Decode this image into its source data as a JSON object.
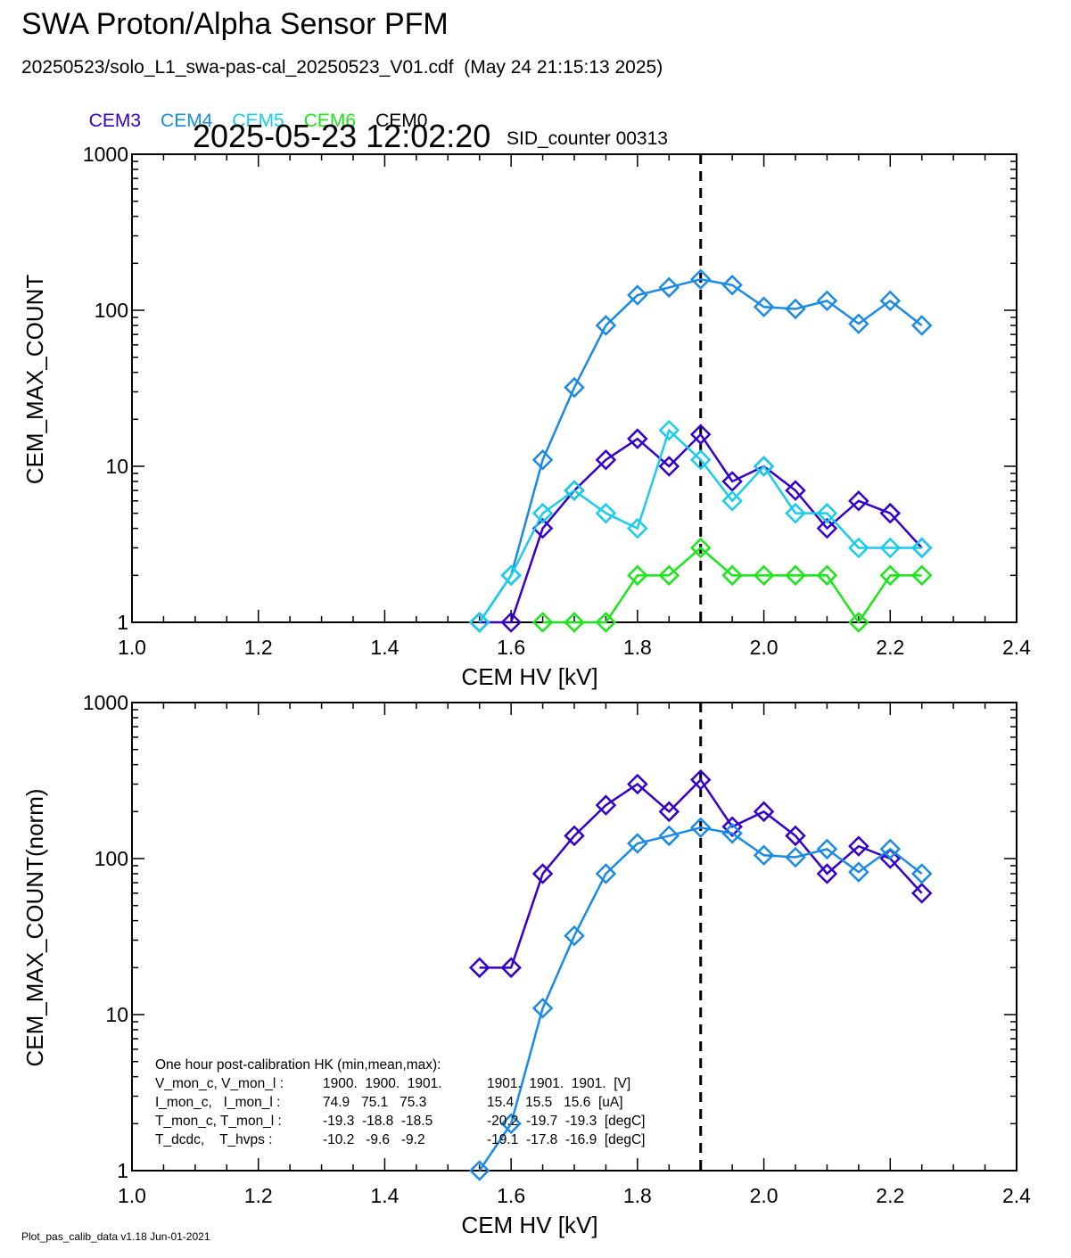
{
  "header": {
    "title": "SWA Proton/Alpha Sensor PFM",
    "subtitle": "20250523/solo_L1_swa-pas-cal_20250523_V01.cdf  (May 24 21:15:13 2025)",
    "timestamp": "2025-05-23 12:02:20",
    "sid_counter": "SID_counter 00313"
  },
  "legend": [
    {
      "label": "CEM3",
      "color": "#3300cc"
    },
    {
      "label": "CEM4",
      "color": "#1a8ae6"
    },
    {
      "label": "CEM5",
      "color": "#1acceb"
    },
    {
      "label": "CEM6",
      "color": "#1ae61a"
    },
    {
      "label": "CEM0",
      "color": "#000000"
    }
  ],
  "footer": "Plot_pas_calib_data v1.18 Jun-01-2021",
  "chart_data": [
    {
      "type": "line",
      "xlabel": "CEM HV [kV]",
      "ylabel": "CEM_MAX_COUNT",
      "xlim": [
        1.0,
        2.4
      ],
      "ylim": [
        1,
        1000
      ],
      "yscale": "log",
      "x_ticks": [
        "1.0",
        "1.2",
        "1.4",
        "1.6",
        "1.8",
        "2.0",
        "2.2",
        "2.4"
      ],
      "y_ticks": [
        "1",
        "10",
        "100",
        "1000"
      ],
      "vline": 1.9,
      "marker": "diamond",
      "series": [
        {
          "name": "CEM3",
          "color": "#3300cc",
          "x": [
            1.55,
            1.6,
            1.65,
            1.7,
            1.75,
            1.8,
            1.85,
            1.9,
            1.95,
            2.0,
            2.05,
            2.1,
            2.15,
            2.2,
            2.25
          ],
          "y": [
            1,
            1,
            4,
            7,
            11,
            15,
            10,
            16,
            8,
            10,
            7,
            4,
            6,
            5,
            3
          ]
        },
        {
          "name": "CEM4",
          "color": "#1a8ae6",
          "x": [
            1.55,
            1.6,
            1.65,
            1.7,
            1.75,
            1.8,
            1.85,
            1.9,
            1.95,
            2.0,
            2.05,
            2.1,
            2.15,
            2.2,
            2.25
          ],
          "y": [
            1,
            2,
            11,
            32,
            80,
            125,
            140,
            158,
            145,
            105,
            102,
            115,
            82,
            115,
            80
          ]
        },
        {
          "name": "CEM5",
          "color": "#1acceb",
          "x": [
            1.55,
            1.6,
            1.65,
            1.7,
            1.75,
            1.8,
            1.85,
            1.9,
            1.95,
            2.0,
            2.05,
            2.1,
            2.15,
            2.2,
            2.25
          ],
          "y": [
            1,
            2,
            5,
            7,
            5,
            4,
            17,
            11,
            6,
            10,
            5,
            5,
            3,
            3,
            3
          ]
        },
        {
          "name": "CEM6",
          "color": "#1ae61a",
          "x": [
            1.65,
            1.7,
            1.75,
            1.8,
            1.85,
            1.9,
            1.95,
            2.0,
            2.05,
            2.1,
            2.15,
            2.2,
            2.25
          ],
          "y": [
            1,
            1,
            1,
            2,
            2,
            3,
            2,
            2,
            2,
            2,
            1,
            2,
            2
          ]
        }
      ]
    },
    {
      "type": "line",
      "xlabel": "CEM HV [kV]",
      "ylabel": "CEM_MAX_COUNT(norm)",
      "xlim": [
        1.0,
        2.4
      ],
      "ylim": [
        1,
        1000
      ],
      "yscale": "log",
      "x_ticks": [
        "1.0",
        "1.2",
        "1.4",
        "1.6",
        "1.8",
        "2.0",
        "2.2",
        "2.4"
      ],
      "y_ticks": [
        "1",
        "10",
        "100",
        "1000"
      ],
      "vline": 1.9,
      "marker": "diamond",
      "series": [
        {
          "name": "CEM3",
          "color": "#3300cc",
          "x": [
            1.55,
            1.6,
            1.65,
            1.7,
            1.75,
            1.8,
            1.85,
            1.9,
            1.95,
            2.0,
            2.05,
            2.1,
            2.15,
            2.2,
            2.25
          ],
          "y": [
            20,
            20,
            80,
            140,
            220,
            300,
            200,
            320,
            160,
            200,
            140,
            80,
            120,
            100,
            60
          ]
        },
        {
          "name": "CEM4",
          "color": "#1a8ae6",
          "x": [
            1.55,
            1.6,
            1.65,
            1.7,
            1.75,
            1.8,
            1.85,
            1.9,
            1.95,
            2.0,
            2.05,
            2.1,
            2.15,
            2.2,
            2.25
          ],
          "y": [
            1,
            2,
            11,
            32,
            80,
            125,
            140,
            158,
            145,
            105,
            102,
            115,
            82,
            115,
            80
          ]
        }
      ],
      "annotation": {
        "heading": "One hour post-calibration HK (min,mean,max):",
        "rows": [
          {
            "label": "V_mon_c, V_mon_l :",
            "a": "1900.  1900.  1901.",
            "b": "1901.  1901.  1901.  [V]"
          },
          {
            "label": "I_mon_c,   I_mon_l :",
            "a": "74.9   75.1   75.3",
            "b": "15.4   15.5   15.6  [uA]"
          },
          {
            "label": "T_mon_c, T_mon_l :",
            "a": "-19.3  -18.8  -18.5",
            "b": "-20.2  -19.7  -19.3  [degC]"
          },
          {
            "label": "T_dcdc,    T_hvps :",
            "a": "-10.2   -9.6   -9.2",
            "b": "-19.1  -17.8  -16.9  [degC]"
          }
        ]
      }
    }
  ]
}
